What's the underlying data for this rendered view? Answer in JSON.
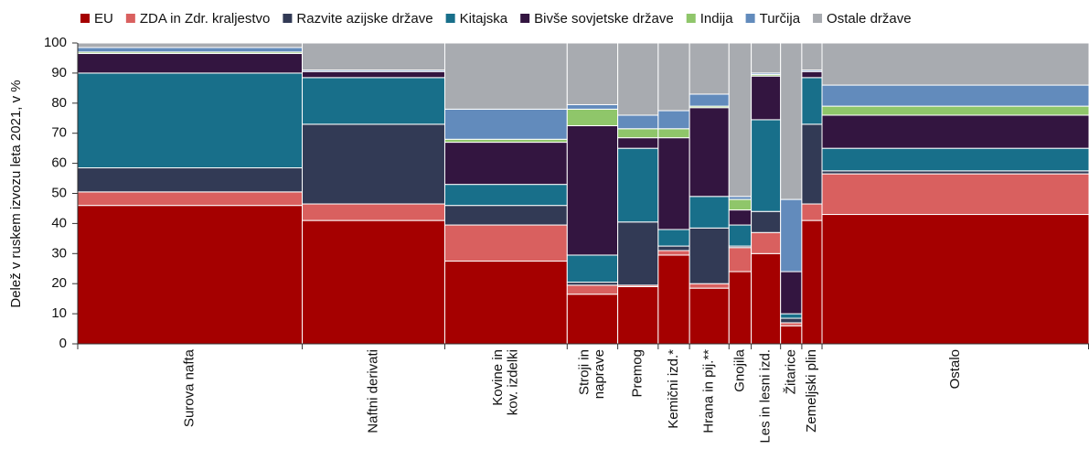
{
  "chart_data": {
    "type": "mekko",
    "y_label": "Delež v ruskem izvozu leta 2021, v %",
    "categories": [
      "Surova nafta",
      "Naftni derivati",
      "Kovine in\nkov. izdelki",
      "Stroji in\nnaprave",
      "Premog",
      "Kemični izd.*",
      "Hrana in pij.**",
      "Gnojila",
      "Les in lesni izd.",
      "Žitarice",
      "Zemeljski plin",
      "Ostalo"
    ],
    "widths": [
      22.2,
      14.1,
      12.1,
      5.0,
      4.0,
      3.1,
      3.9,
      2.2,
      2.9,
      2.1,
      2.0,
      26.4
    ],
    "series": [
      {
        "name": "EU",
        "color": "#a50000",
        "values": [
          46,
          41,
          27.5,
          16.5,
          19,
          29.5,
          18.5,
          24,
          30,
          6,
          41,
          43
        ]
      },
      {
        "name": "ZDA in Zdr. kraljestvo",
        "color": "#d9605f",
        "values": [
          4.5,
          5.5,
          12,
          3,
          0.5,
          1.5,
          1.5,
          8,
          7,
          1,
          5.5,
          13.5
        ]
      },
      {
        "name": "Razvite azijske države",
        "color": "#323a55",
        "values": [
          8,
          26.5,
          6.5,
          1,
          21,
          1.5,
          18.5,
          0.5,
          7,
          1.5,
          26.5,
          1
        ]
      },
      {
        "name": "Kitajska",
        "color": "#186f8a",
        "values": [
          31.5,
          15.5,
          7,
          9,
          24.5,
          5.5,
          10.5,
          7,
          30.5,
          1.5,
          15.5,
          7.5
        ]
      },
      {
        "name": "Bivše sovjetske države",
        "color": "#331540",
        "values": [
          6.5,
          2,
          14,
          43,
          3.5,
          30.5,
          29.5,
          5,
          14.5,
          14,
          2,
          11
        ]
      },
      {
        "name": "Indija",
        "color": "#8fc66a",
        "values": [
          0.5,
          0,
          1,
          5.5,
          3,
          3,
          0.5,
          3.5,
          0.5,
          0,
          0,
          3
        ]
      },
      {
        "name": "Turčija",
        "color": "#628bbc",
        "values": [
          1.5,
          0.5,
          10,
          1.5,
          4.5,
          6,
          4,
          1,
          0.5,
          24,
          0.5,
          7
        ]
      },
      {
        "name": "Ostale države",
        "color": "#a8abb0",
        "values": [
          1.5,
          9,
          22,
          20.5,
          24,
          22.5,
          17,
          51,
          10,
          52,
          9,
          14
        ]
      }
    ],
    "ylim": [
      0,
      100
    ],
    "yticks": [
      0,
      10,
      20,
      30,
      40,
      50,
      60,
      70,
      80,
      90,
      100
    ]
  }
}
